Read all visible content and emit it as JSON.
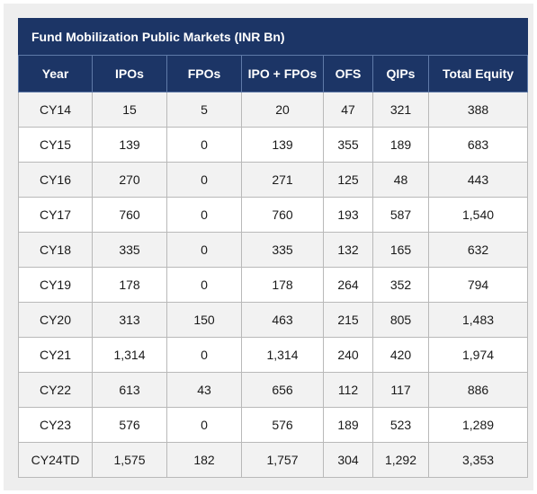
{
  "chart_data": {
    "type": "table",
    "title": "Fund Mobilization Public Markets (INR Bn)",
    "columns": [
      "Year",
      "IPOs",
      "FPOs",
      "IPO + FPOs",
      "OFS",
      "QIPs",
      "Total Equity"
    ],
    "rows": [
      [
        "CY14",
        "15",
        "5",
        "20",
        "47",
        "321",
        "388"
      ],
      [
        "CY15",
        "139",
        "0",
        "139",
        "355",
        "189",
        "683"
      ],
      [
        "CY16",
        "270",
        "0",
        "271",
        "125",
        "48",
        "443"
      ],
      [
        "CY17",
        "760",
        "0",
        "760",
        "193",
        "587",
        "1,540"
      ],
      [
        "CY18",
        "335",
        "0",
        "335",
        "132",
        "165",
        "632"
      ],
      [
        "CY19",
        "178",
        "0",
        "178",
        "264",
        "352",
        "794"
      ],
      [
        "CY20",
        "313",
        "150",
        "463",
        "215",
        "805",
        "1,483"
      ],
      [
        "CY21",
        "1,314",
        "0",
        "1,314",
        "240",
        "420",
        "1,974"
      ],
      [
        "CY22",
        "613",
        "43",
        "656",
        "112",
        "117",
        "886"
      ],
      [
        "CY23",
        "576",
        "0",
        "576",
        "189",
        "523",
        "1,289"
      ],
      [
        "CY24TD",
        "1,575",
        "182",
        "1,757",
        "304",
        "1,292",
        "3,353"
      ]
    ]
  },
  "colors": {
    "header_bg": "#1c3566",
    "header_text": "#ffffff",
    "row_alt_bg": "#f2f2f2",
    "row_bg": "#ffffff",
    "grid": "#b9b9b9"
  }
}
